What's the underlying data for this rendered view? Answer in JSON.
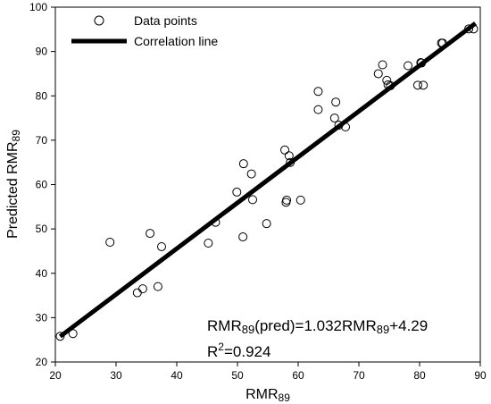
{
  "chart_data": {
    "type": "scatter",
    "xlabel": {
      "base": "RMR",
      "sub": "89"
    },
    "ylabel": {
      "text": "Predicted RMR",
      "sub": "89"
    },
    "xlim": [
      20,
      90
    ],
    "ylim": [
      20,
      100
    ],
    "x_ticks": [
      "20",
      "30",
      "40",
      "50",
      "60",
      "70",
      "80",
      "90"
    ],
    "y_ticks": [
      "20",
      "30",
      "40",
      "50",
      "60",
      "70",
      "80",
      "90",
      "100"
    ],
    "x_tick_values": [
      20,
      30,
      40,
      50,
      60,
      70,
      80,
      90
    ],
    "y_tick_values": [
      20,
      30,
      40,
      50,
      60,
      70,
      80,
      90,
      100
    ],
    "grid": false,
    "legend": {
      "position": "top-left",
      "items": [
        {
          "label": "Data points",
          "kind": "marker"
        },
        {
          "label": "Correlation line",
          "kind": "line"
        }
      ]
    },
    "series": [
      {
        "name": "Data points",
        "marker": "open-circle",
        "points": [
          [
            20.8,
            25.8
          ],
          [
            22.9,
            26.4
          ],
          [
            29.0,
            47.0
          ],
          [
            33.5,
            35.6
          ],
          [
            34.4,
            36.5
          ],
          [
            35.6,
            49.0
          ],
          [
            36.9,
            37.0
          ],
          [
            37.5,
            46.0
          ],
          [
            45.2,
            46.8
          ],
          [
            46.4,
            51.5
          ],
          [
            49.9,
            58.3
          ],
          [
            50.9,
            48.2
          ],
          [
            51.0,
            64.7
          ],
          [
            52.3,
            62.4
          ],
          [
            52.5,
            56.6
          ],
          [
            54.8,
            51.2
          ],
          [
            57.8,
            67.8
          ],
          [
            58.0,
            56.0
          ],
          [
            58.1,
            56.5
          ],
          [
            58.5,
            66.5
          ],
          [
            58.7,
            65.0
          ],
          [
            60.4,
            56.5
          ],
          [
            63.3,
            81.0
          ],
          [
            63.3,
            76.9
          ],
          [
            66.0,
            75.0
          ],
          [
            66.2,
            78.6
          ],
          [
            66.7,
            73.4
          ],
          [
            67.8,
            73.0
          ],
          [
            73.2,
            85.0
          ],
          [
            73.9,
            87.0
          ],
          [
            74.6,
            83.5
          ],
          [
            74.8,
            82.5
          ],
          [
            75.2,
            82.3
          ],
          [
            78.1,
            86.8
          ],
          [
            79.7,
            82.4
          ],
          [
            80.2,
            87.5
          ],
          [
            80.3,
            87.4
          ],
          [
            80.6,
            82.4
          ],
          [
            83.6,
            91.9
          ],
          [
            83.8,
            91.9
          ],
          [
            88.1,
            95.1
          ],
          [
            88.9,
            95.1
          ]
        ]
      },
      {
        "name": "Correlation line",
        "kind": "line",
        "slope": 1.032,
        "intercept": 4.29,
        "x_range": [
          20.8,
          89.2
        ]
      }
    ],
    "annotations": [
      {
        "kind": "equation",
        "parts": [
          "RMR",
          "89",
          "(pred)=1.032RMR",
          "89",
          "+4.29"
        ]
      },
      {
        "kind": "r2",
        "base": "R",
        "sup": "2",
        "rest": "=0.924"
      }
    ]
  }
}
